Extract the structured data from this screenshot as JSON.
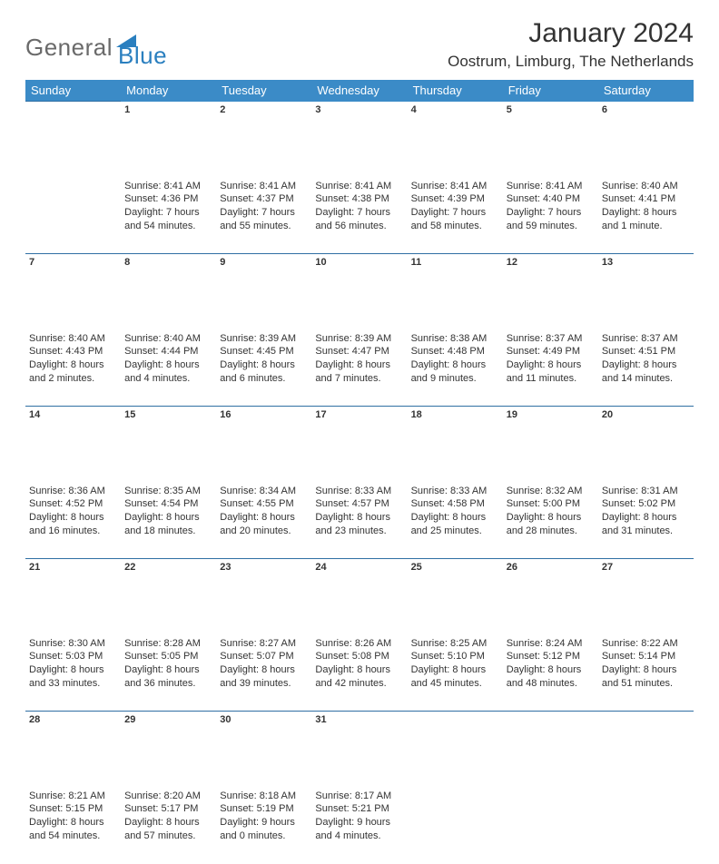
{
  "logo": {
    "text1": "General",
    "text2": "Blue"
  },
  "title": "January 2024",
  "location": "Oostrum, Limburg, The Netherlands",
  "colors": {
    "header_bg": "#3b8bc7",
    "header_text": "#ffffff",
    "row_border": "#2f6fa3",
    "daynum": "#6a6a6a",
    "body_text": "#333333",
    "logo_gray": "#6a6a6a",
    "logo_blue": "#2a7fbf"
  },
  "weekdays": [
    "Sunday",
    "Monday",
    "Tuesday",
    "Wednesday",
    "Thursday",
    "Friday",
    "Saturday"
  ],
  "weeks": [
    [
      null,
      {
        "n": "1",
        "sr": "8:41 AM",
        "ss": "4:36 PM",
        "dl": "7 hours and 54 minutes."
      },
      {
        "n": "2",
        "sr": "8:41 AM",
        "ss": "4:37 PM",
        "dl": "7 hours and 55 minutes."
      },
      {
        "n": "3",
        "sr": "8:41 AM",
        "ss": "4:38 PM",
        "dl": "7 hours and 56 minutes."
      },
      {
        "n": "4",
        "sr": "8:41 AM",
        "ss": "4:39 PM",
        "dl": "7 hours and 58 minutes."
      },
      {
        "n": "5",
        "sr": "8:41 AM",
        "ss": "4:40 PM",
        "dl": "7 hours and 59 minutes."
      },
      {
        "n": "6",
        "sr": "8:40 AM",
        "ss": "4:41 PM",
        "dl": "8 hours and 1 minute."
      }
    ],
    [
      {
        "n": "7",
        "sr": "8:40 AM",
        "ss": "4:43 PM",
        "dl": "8 hours and 2 minutes."
      },
      {
        "n": "8",
        "sr": "8:40 AM",
        "ss": "4:44 PM",
        "dl": "8 hours and 4 minutes."
      },
      {
        "n": "9",
        "sr": "8:39 AM",
        "ss": "4:45 PM",
        "dl": "8 hours and 6 minutes."
      },
      {
        "n": "10",
        "sr": "8:39 AM",
        "ss": "4:47 PM",
        "dl": "8 hours and 7 minutes."
      },
      {
        "n": "11",
        "sr": "8:38 AM",
        "ss": "4:48 PM",
        "dl": "8 hours and 9 minutes."
      },
      {
        "n": "12",
        "sr": "8:37 AM",
        "ss": "4:49 PM",
        "dl": "8 hours and 11 minutes."
      },
      {
        "n": "13",
        "sr": "8:37 AM",
        "ss": "4:51 PM",
        "dl": "8 hours and 14 minutes."
      }
    ],
    [
      {
        "n": "14",
        "sr": "8:36 AM",
        "ss": "4:52 PM",
        "dl": "8 hours and 16 minutes."
      },
      {
        "n": "15",
        "sr": "8:35 AM",
        "ss": "4:54 PM",
        "dl": "8 hours and 18 minutes."
      },
      {
        "n": "16",
        "sr": "8:34 AM",
        "ss": "4:55 PM",
        "dl": "8 hours and 20 minutes."
      },
      {
        "n": "17",
        "sr": "8:33 AM",
        "ss": "4:57 PM",
        "dl": "8 hours and 23 minutes."
      },
      {
        "n": "18",
        "sr": "8:33 AM",
        "ss": "4:58 PM",
        "dl": "8 hours and 25 minutes."
      },
      {
        "n": "19",
        "sr": "8:32 AM",
        "ss": "5:00 PM",
        "dl": "8 hours and 28 minutes."
      },
      {
        "n": "20",
        "sr": "8:31 AM",
        "ss": "5:02 PM",
        "dl": "8 hours and 31 minutes."
      }
    ],
    [
      {
        "n": "21",
        "sr": "8:30 AM",
        "ss": "5:03 PM",
        "dl": "8 hours and 33 minutes."
      },
      {
        "n": "22",
        "sr": "8:28 AM",
        "ss": "5:05 PM",
        "dl": "8 hours and 36 minutes."
      },
      {
        "n": "23",
        "sr": "8:27 AM",
        "ss": "5:07 PM",
        "dl": "8 hours and 39 minutes."
      },
      {
        "n": "24",
        "sr": "8:26 AM",
        "ss": "5:08 PM",
        "dl": "8 hours and 42 minutes."
      },
      {
        "n": "25",
        "sr": "8:25 AM",
        "ss": "5:10 PM",
        "dl": "8 hours and 45 minutes."
      },
      {
        "n": "26",
        "sr": "8:24 AM",
        "ss": "5:12 PM",
        "dl": "8 hours and 48 minutes."
      },
      {
        "n": "27",
        "sr": "8:22 AM",
        "ss": "5:14 PM",
        "dl": "8 hours and 51 minutes."
      }
    ],
    [
      {
        "n": "28",
        "sr": "8:21 AM",
        "ss": "5:15 PM",
        "dl": "8 hours and 54 minutes."
      },
      {
        "n": "29",
        "sr": "8:20 AM",
        "ss": "5:17 PM",
        "dl": "8 hours and 57 minutes."
      },
      {
        "n": "30",
        "sr": "8:18 AM",
        "ss": "5:19 PM",
        "dl": "9 hours and 0 minutes."
      },
      {
        "n": "31",
        "sr": "8:17 AM",
        "ss": "5:21 PM",
        "dl": "9 hours and 4 minutes."
      },
      null,
      null,
      null
    ]
  ],
  "labels": {
    "sunrise": "Sunrise:",
    "sunset": "Sunset:",
    "daylight": "Daylight:"
  }
}
